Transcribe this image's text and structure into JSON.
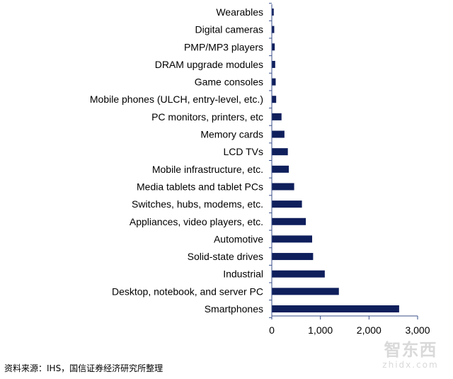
{
  "chart_data": {
    "type": "bar",
    "orientation": "horizontal",
    "categories": [
      "Wearables",
      "Digital cameras",
      "PMP/MP3 players",
      "DRAM upgrade modules",
      "Game consoles",
      "Mobile phones (ULCH, entry-level, etc.)",
      "PC monitors, printers, etc",
      "Memory cards",
      "LCD TVs",
      "Mobile infrastructure, etc.",
      "Media tablets and tablet PCs",
      "Switches, hubs, modems, etc.",
      "Appliances, video players, etc.",
      "Automotive",
      "Solid-state drives",
      "Industrial",
      "Desktop, notebook, and server PC",
      "Smartphones"
    ],
    "values": [
      40,
      50,
      60,
      70,
      80,
      90,
      200,
      260,
      330,
      350,
      460,
      620,
      700,
      830,
      850,
      1090,
      1380,
      2620
    ],
    "xlim": [
      0,
      3000
    ],
    "xticks": [
      "0",
      "1,000",
      "2,000",
      "3,000"
    ],
    "xtick_values": [
      0,
      1000,
      2000,
      3000
    ],
    "bar_color": "#0f1f5c",
    "axis_color": "#3a4f8a",
    "grid": false,
    "legend": "none"
  },
  "source_note": "资料来源：IHS，国信证券经济研究所整理",
  "watermark": {
    "main": "智东西",
    "sub": "zhidx.com"
  }
}
